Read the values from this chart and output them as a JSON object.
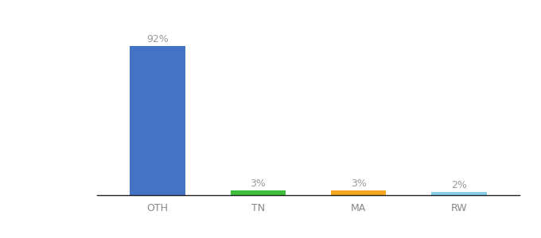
{
  "categories": [
    "OTH",
    "TN",
    "MA",
    "RW"
  ],
  "values": [
    92,
    3,
    3,
    2
  ],
  "bar_colors": [
    "#4472C4",
    "#3DBE3D",
    "#F5A623",
    "#87CEEB"
  ],
  "labels": [
    "92%",
    "3%",
    "3%",
    "2%"
  ],
  "ylim": [
    0,
    100
  ],
  "background_color": "#ffffff",
  "label_fontsize": 9,
  "tick_fontsize": 9,
  "label_color": "#999999",
  "tick_color": "#888888",
  "bar_width": 0.55
}
